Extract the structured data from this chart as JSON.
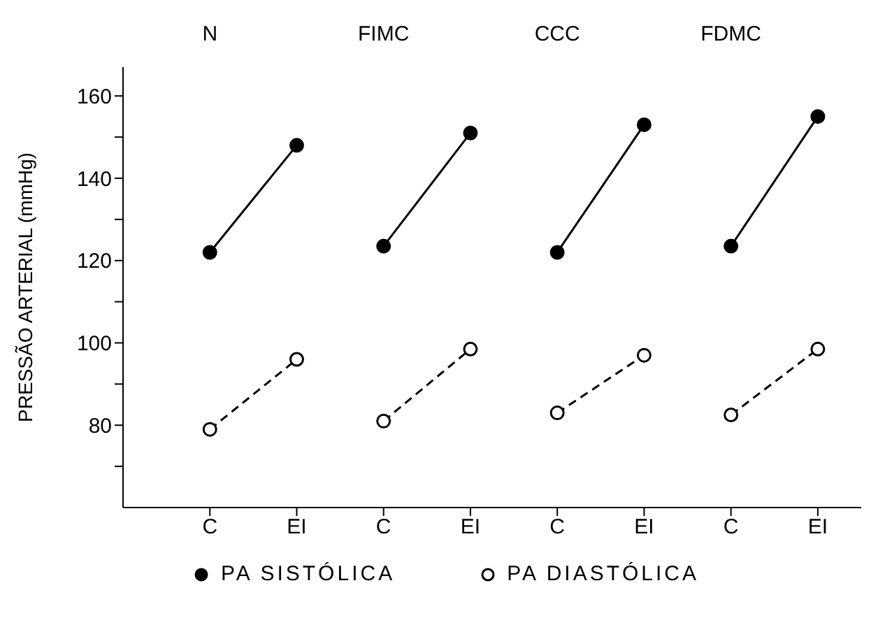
{
  "chart_data": {
    "type": "line",
    "ylabel": "PRESSÃO ARTERIAL (mmHg)",
    "categories": [
      "C",
      "EI",
      "C",
      "EI",
      "C",
      "EI",
      "C",
      "EI"
    ],
    "annotations": [
      "N",
      "FIMC",
      "CCC",
      "FDMC"
    ],
    "series": [
      {
        "name": "PA SISTÓLICA",
        "color": "#000000",
        "line_style": "solid",
        "values": [
          122,
          148,
          123.5,
          151,
          122,
          153,
          123.5,
          155
        ]
      },
      {
        "name": "PA DIASTÓLICA",
        "color": "#000000",
        "line_style": "dashed",
        "values": [
          79,
          96,
          81,
          98.5,
          83,
          97,
          82.5,
          98.5
        ]
      }
    ],
    "ylim": [
      60,
      167
    ],
    "yticks": [
      {
        "value": 70,
        "label": null
      },
      80,
      {
        "value": 90,
        "label": null
      },
      100,
      {
        "value": 110,
        "label": null
      },
      120,
      {
        "value": 130,
        "label": null
      },
      140,
      {
        "value": 150,
        "label": null
      },
      160
    ],
    "marker": "circle",
    "legend": "bottom",
    "grid": false
  }
}
